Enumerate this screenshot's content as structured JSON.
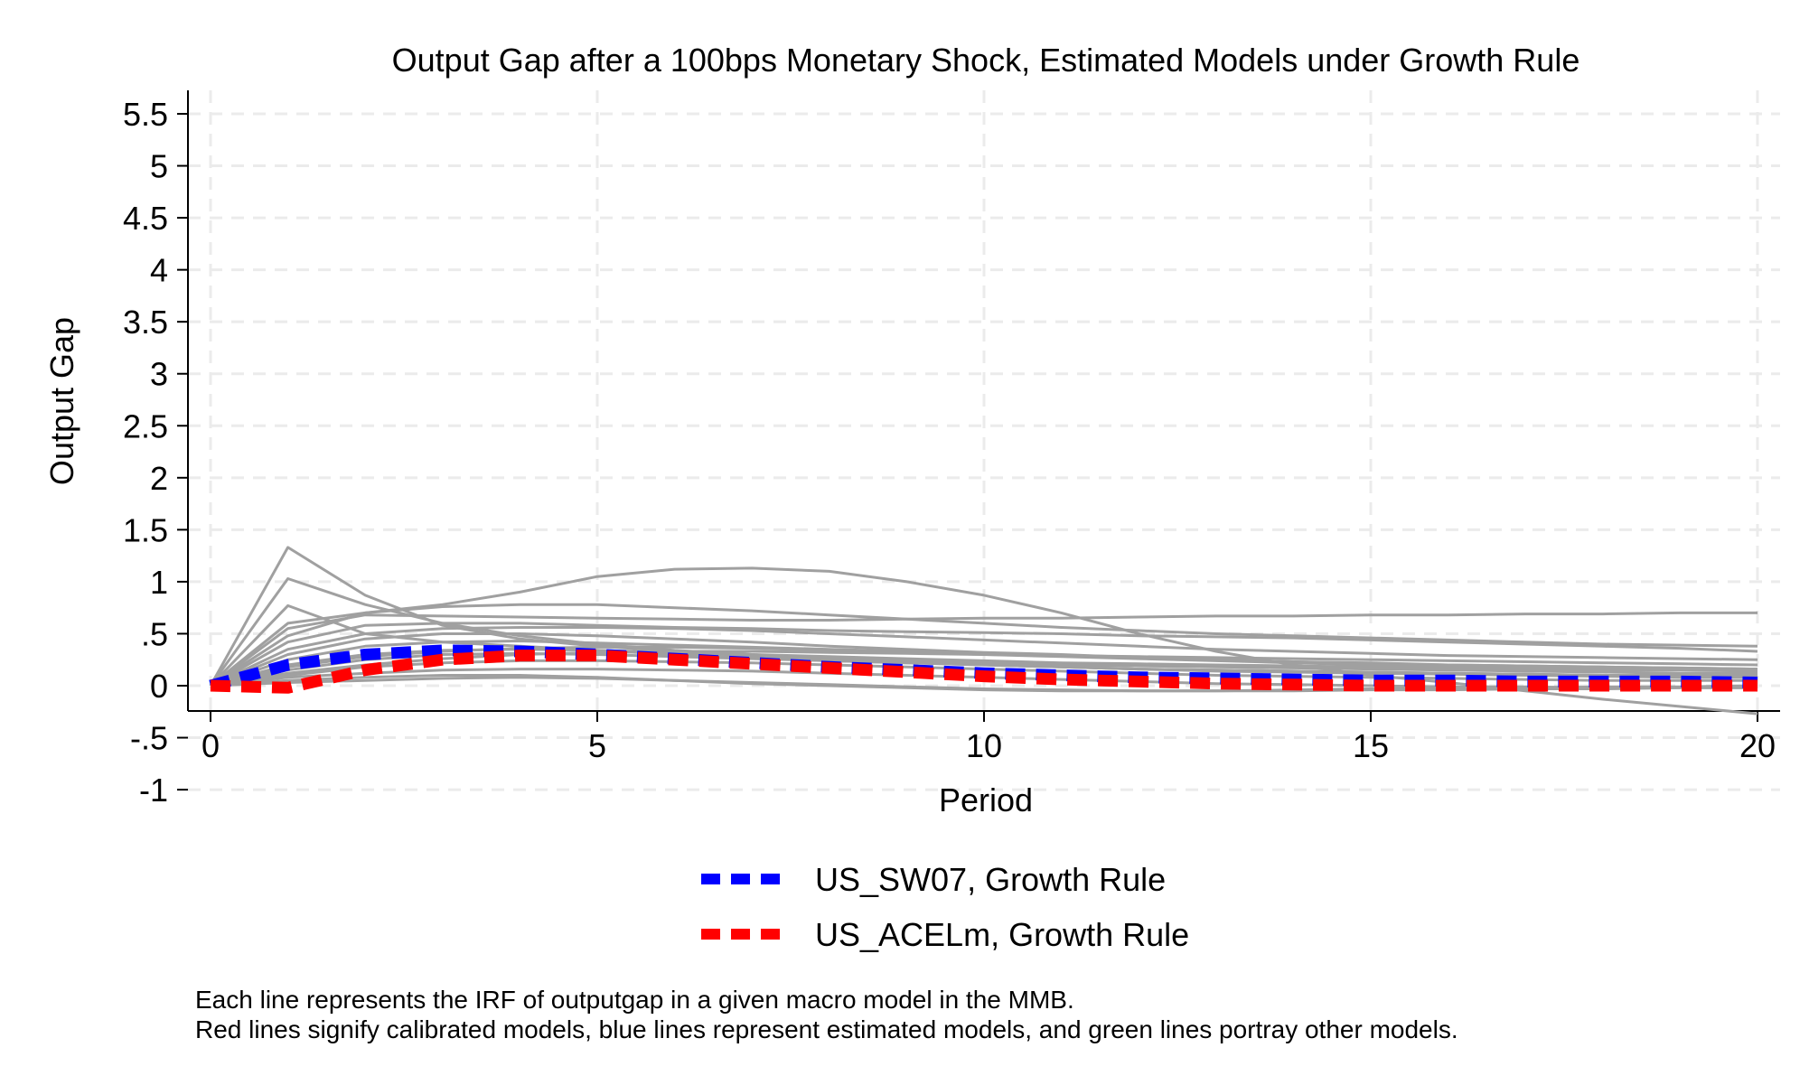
{
  "chart_data": {
    "type": "line",
    "title": "Output Gap after a 100bps Monetary Shock, Estimated Models under Growth Rule",
    "xlabel": "Period",
    "ylabel": "Output Gap",
    "xlim": [
      0,
      20
    ],
    "ylim": [
      -1,
      5.5
    ],
    "x_ticks": [
      0,
      5,
      10,
      15,
      20
    ],
    "x_tick_labels": [
      "0",
      "5",
      "10",
      "15",
      "20"
    ],
    "y_ticks": [
      -1,
      -0.5,
      0,
      0.5,
      1,
      1.5,
      2,
      2.5,
      3,
      3.5,
      4,
      4.5,
      5,
      5.5
    ],
    "y_tick_labels": [
      "-1",
      "-.5",
      "0",
      ".5",
      "1",
      "1.5",
      "2",
      "2.5",
      "3",
      "3.5",
      "4",
      "4.5",
      "5",
      "5.5"
    ],
    "grid": true,
    "legend_position": "bottom",
    "x": [
      0,
      1,
      2,
      3,
      4,
      5,
      6,
      7,
      8,
      9,
      10,
      11,
      12,
      13,
      14,
      15,
      16,
      17,
      18,
      19,
      20
    ],
    "background_series": [
      {
        "values": [
          0,
          1.33,
          0.87,
          0.58,
          0.45,
          0.38,
          0.33,
          0.29,
          0.26,
          0.24,
          0.22,
          0.2,
          0.19,
          0.18,
          0.17,
          0.16,
          0.15,
          0.14,
          0.13,
          0.12,
          0.12
        ]
      },
      {
        "values": [
          0,
          1.03,
          0.78,
          0.6,
          0.48,
          0.4,
          0.34,
          0.3,
          0.26,
          0.23,
          0.2,
          0.18,
          0.16,
          0.14,
          0.13,
          0.12,
          0.11,
          0.1,
          0.09,
          0.08,
          0.08
        ]
      },
      {
        "values": [
          0,
          0.77,
          0.5,
          0.42,
          0.38,
          0.34,
          0.3,
          0.27,
          0.24,
          0.22,
          0.2,
          0.18,
          0.16,
          0.15,
          0.14,
          0.13,
          0.12,
          0.11,
          0.1,
          0.1,
          0.09
        ]
      },
      {
        "values": [
          0,
          0.6,
          0.7,
          0.78,
          0.9,
          1.05,
          1.12,
          1.13,
          1.1,
          1.0,
          0.87,
          0.7,
          0.5,
          0.33,
          0.2,
          0.1,
          0.03,
          -0.05,
          -0.13,
          -0.2,
          -0.27
        ]
      },
      {
        "values": [
          0,
          0.55,
          0.68,
          0.67,
          0.66,
          0.65,
          0.64,
          0.63,
          0.63,
          0.64,
          0.65,
          0.65,
          0.66,
          0.67,
          0.67,
          0.68,
          0.68,
          0.69,
          0.69,
          0.7,
          0.7
        ]
      },
      {
        "values": [
          0,
          0.48,
          0.7,
          0.76,
          0.78,
          0.78,
          0.75,
          0.72,
          0.68,
          0.64,
          0.6,
          0.56,
          0.53,
          0.5,
          0.48,
          0.46,
          0.44,
          0.42,
          0.4,
          0.39,
          0.38
        ]
      },
      {
        "values": [
          0,
          0.42,
          0.58,
          0.6,
          0.6,
          0.58,
          0.56,
          0.55,
          0.53,
          0.52,
          0.51,
          0.5,
          0.48,
          0.47,
          0.46,
          0.44,
          0.42,
          0.4,
          0.38,
          0.36,
          0.33
        ]
      },
      {
        "values": [
          0,
          0.35,
          0.5,
          0.55,
          0.56,
          0.56,
          0.55,
          0.53,
          0.5,
          0.47,
          0.44,
          0.41,
          0.38,
          0.35,
          0.33,
          0.31,
          0.29,
          0.28,
          0.27,
          0.26,
          0.25
        ]
      },
      {
        "values": [
          0,
          0.3,
          0.45,
          0.5,
          0.5,
          0.48,
          0.45,
          0.42,
          0.38,
          0.35,
          0.32,
          0.3,
          0.27,
          0.25,
          0.23,
          0.21,
          0.2,
          0.19,
          0.18,
          0.17,
          0.16
        ]
      },
      {
        "values": [
          0,
          0.25,
          0.38,
          0.42,
          0.43,
          0.41,
          0.39,
          0.37,
          0.35,
          0.33,
          0.31,
          0.29,
          0.27,
          0.25,
          0.23,
          0.22,
          0.2,
          0.19,
          0.18,
          0.17,
          0.16
        ]
      },
      {
        "values": [
          0,
          0.2,
          0.3,
          0.34,
          0.35,
          0.34,
          0.32,
          0.3,
          0.28,
          0.26,
          0.24,
          0.22,
          0.21,
          0.2,
          0.19,
          0.18,
          0.17,
          0.16,
          0.15,
          0.15,
          0.14
        ]
      },
      {
        "values": [
          0,
          0.15,
          0.25,
          0.3,
          0.31,
          0.3,
          0.28,
          0.26,
          0.24,
          0.22,
          0.2,
          0.18,
          0.16,
          0.15,
          0.14,
          0.13,
          0.12,
          0.11,
          0.1,
          0.1,
          0.1
        ]
      },
      {
        "values": [
          0,
          0.1,
          0.18,
          0.22,
          0.24,
          0.24,
          0.23,
          0.22,
          0.2,
          0.18,
          0.16,
          0.14,
          0.12,
          0.1,
          0.09,
          0.08,
          0.07,
          0.06,
          0.05,
          0.05,
          0.05
        ]
      },
      {
        "values": [
          0,
          0.08,
          0.12,
          0.15,
          0.16,
          0.16,
          0.15,
          0.14,
          0.12,
          0.1,
          0.08,
          0.06,
          0.04,
          0.02,
          0.01,
          0.0,
          -0.01,
          -0.01,
          -0.02,
          -0.02,
          -0.02
        ]
      },
      {
        "values": [
          0,
          0.05,
          0.08,
          0.1,
          0.1,
          0.08,
          0.05,
          0.02,
          0.0,
          -0.02,
          -0.04,
          -0.05,
          -0.05,
          -0.05,
          -0.04,
          -0.03,
          -0.02,
          -0.02,
          -0.01,
          -0.01,
          0.0
        ]
      },
      {
        "values": [
          0,
          0.03,
          0.05,
          0.07,
          0.08,
          0.07,
          0.05,
          0.03,
          0.01,
          -0.01,
          -0.03,
          -0.04,
          -0.05,
          -0.05,
          -0.05,
          -0.04,
          -0.04,
          -0.03,
          -0.03,
          -0.02,
          -0.02
        ]
      },
      {
        "values": [
          0,
          0.18,
          0.28,
          0.33,
          0.36,
          0.37,
          0.37,
          0.36,
          0.34,
          0.32,
          0.3,
          0.28,
          0.26,
          0.24,
          0.22,
          0.2,
          0.19,
          0.18,
          0.17,
          0.16,
          0.15
        ]
      },
      {
        "values": [
          0,
          0.12,
          0.2,
          0.26,
          0.3,
          0.32,
          0.33,
          0.33,
          0.32,
          0.31,
          0.3,
          0.29,
          0.28,
          0.27,
          0.26,
          0.25,
          0.24,
          0.23,
          0.22,
          0.21,
          0.2
        ]
      }
    ],
    "series": [
      {
        "name": "US_SW07, Growth Rule",
        "color": "#0000ff",
        "values": [
          0,
          0.2,
          0.3,
          0.34,
          0.33,
          0.3,
          0.26,
          0.22,
          0.18,
          0.15,
          0.12,
          0.1,
          0.08,
          0.07,
          0.06,
          0.05,
          0.05,
          0.04,
          0.04,
          0.04,
          0.03
        ]
      },
      {
        "name": "US_ACELm, Growth Rule",
        "color": "#ff0000",
        "values": [
          0,
          -0.02,
          0.15,
          0.25,
          0.29,
          0.29,
          0.25,
          0.21,
          0.17,
          0.13,
          0.09,
          0.06,
          0.04,
          0.02,
          0.01,
          0.0,
          0.0,
          0.0,
          0.0,
          0.0,
          0.0
        ]
      }
    ],
    "colors": {
      "background_lines": "#a0a0a0",
      "grid": "#ebebeb",
      "axis": "#000000"
    }
  },
  "notes": [
    "Each line represents the IRF of outputgap in a given macro model in the MMB.",
    "Red lines signify calibrated models, blue lines represent estimated models, and green lines portray other models."
  ]
}
